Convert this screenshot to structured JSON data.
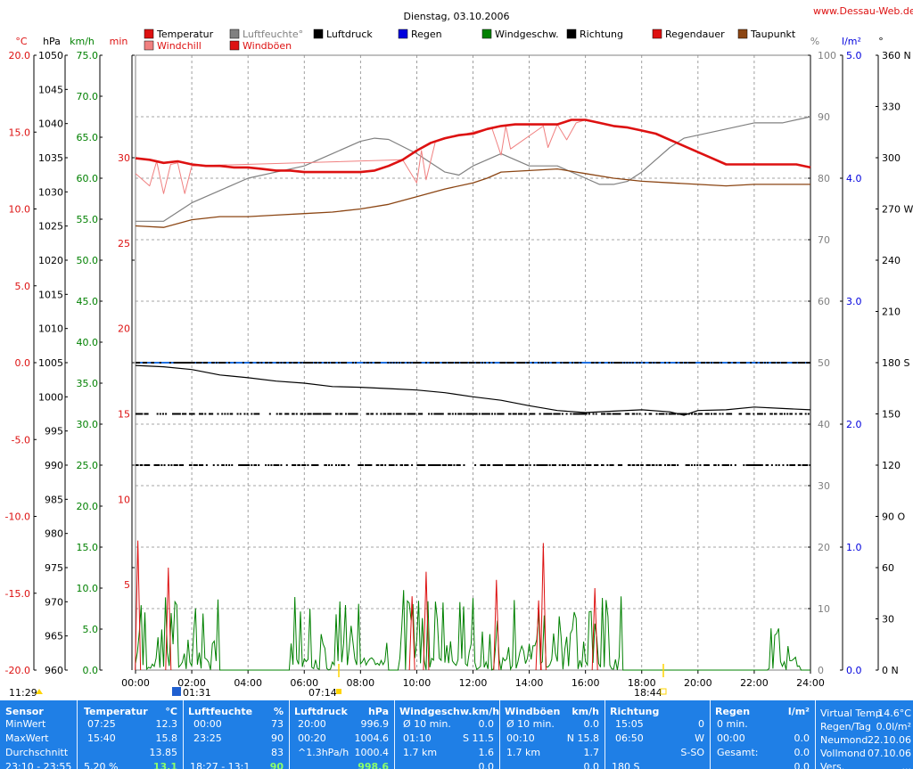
{
  "credit": "www.Dessau-Web.de",
  "chart_data": {
    "type": "line",
    "title": "Dienstag, 03.10.2006",
    "x_ticks": [
      "00:00",
      "02:00",
      "04:00",
      "06:00",
      "08:00",
      "10:00",
      "12:00",
      "14:00",
      "16:00",
      "18:00",
      "20:00",
      "22:00",
      "24:00"
    ],
    "legend": [
      {
        "label": "Temperatur",
        "color": "#dd1111"
      },
      {
        "label": "Luftfeuchte°",
        "color": "#808080"
      },
      {
        "label": "Luftdruck",
        "color": "#000000"
      },
      {
        "label": "Regen",
        "color": "#0000dd"
      },
      {
        "label": "Windgeschw.",
        "color": "#008000"
      },
      {
        "label": "Richtung",
        "color": "#000000"
      },
      {
        "label": "Regendauer",
        "color": "#dd1111"
      },
      {
        "label": "Taupunkt",
        "color": "#8b4513"
      },
      {
        "label": "Windchill",
        "color": "#f08080"
      },
      {
        "label": "Windböen",
        "color": "#dd1111"
      }
    ],
    "axes": {
      "temp": {
        "unit": "°C",
        "ticks": [
          "20.0",
          "15.0",
          "10.0",
          "5.0",
          "0.0",
          "-5.0",
          "-10.0",
          "-15.0",
          "-20.0"
        ],
        "range": [
          -20,
          20
        ],
        "color": "#dd1111"
      },
      "pressure": {
        "unit": "hPa",
        "ticks": [
          "1050",
          "1045",
          "1040",
          "1035",
          "1030",
          "1025",
          "1020",
          "1015",
          "1010",
          "1005",
          "1000",
          "995",
          "990",
          "985",
          "980",
          "975",
          "970",
          "965",
          "960"
        ],
        "range": [
          960,
          1050
        ],
        "color": "#000000"
      },
      "wind": {
        "unit": "km/h",
        "ticks": [
          "75.0",
          "70.0",
          "65.0",
          "60.0",
          "55.0",
          "50.0",
          "45.0",
          "40.0",
          "35.0",
          "30.0",
          "25.0",
          "20.0",
          "15.0",
          "10.0",
          "5.0",
          "0.0"
        ],
        "range": [
          0,
          75
        ],
        "color": "#008000"
      },
      "minutes": {
        "unit": "min",
        "ticks": [
          "30",
          "25",
          "20",
          "15",
          "10",
          "5"
        ],
        "range": [
          0,
          30
        ],
        "color": "#dd1111"
      },
      "humidity": {
        "unit": "%",
        "ticks": [
          "100",
          "90",
          "80",
          "70",
          "60",
          "50",
          "40",
          "30",
          "20",
          "10",
          "0"
        ],
        "range": [
          0,
          100
        ],
        "color": "#808080"
      },
      "rain": {
        "unit": "l/m²",
        "ticks": [
          "5.0",
          "4.0",
          "3.0",
          "2.0",
          "1.0",
          "0.0"
        ],
        "range": [
          0,
          5
        ],
        "color": "#0000dd"
      },
      "direction": {
        "unit": "°",
        "ticks": [
          "360 N",
          "330",
          "300",
          "270 W",
          "240",
          "210",
          "180 S",
          "150",
          "120",
          "90 O",
          "60",
          "30",
          "0 N"
        ],
        "range": [
          0,
          360
        ],
        "color": "#000000"
      }
    },
    "series": [
      {
        "name": "Temperatur",
        "color": "#dd1111",
        "axis": "temp",
        "x": [
          "00:00",
          "00:30",
          "01:00",
          "01:30",
          "02:00",
          "02:30",
          "03:00",
          "03:30",
          "04:00",
          "04:30",
          "05:00",
          "05:30",
          "06:00",
          "06:30",
          "07:00",
          "07:30",
          "08:00",
          "08:30",
          "09:00",
          "09:30",
          "10:00",
          "10:30",
          "11:00",
          "11:30",
          "12:00",
          "12:30",
          "13:00",
          "13:30",
          "14:00",
          "14:30",
          "15:00",
          "15:30",
          "16:00",
          "16:30",
          "17:00",
          "17:30",
          "18:00",
          "18:30",
          "19:00",
          "19:30",
          "20:00",
          "20:30",
          "21:00",
          "21:30",
          "22:00",
          "22:30",
          "23:00",
          "23:30",
          "24:00"
        ],
        "y": [
          13.3,
          13.2,
          13.0,
          13.1,
          12.9,
          12.8,
          12.8,
          12.7,
          12.7,
          12.6,
          12.5,
          12.5,
          12.4,
          12.4,
          12.4,
          12.4,
          12.4,
          12.5,
          12.8,
          13.2,
          13.8,
          14.3,
          14.6,
          14.8,
          14.9,
          15.2,
          15.4,
          15.5,
          15.5,
          15.5,
          15.5,
          15.8,
          15.8,
          15.6,
          15.4,
          15.3,
          15.1,
          14.9,
          14.5,
          14.1,
          13.7,
          13.3,
          12.9,
          12.9,
          12.9,
          12.9,
          12.9,
          12.9,
          12.7
        ]
      },
      {
        "name": "Windchill",
        "color": "#f08080",
        "axis": "temp",
        "x": [
          "00:00",
          "00:30",
          "00:45",
          "01:00",
          "01:15",
          "01:30",
          "01:45",
          "02:00",
          "09:30",
          "10:00",
          "10:10",
          "10:20",
          "10:40",
          "12:40",
          "13:00",
          "13:10",
          "13:20",
          "14:30",
          "14:40",
          "15:00",
          "15:20",
          "15:40",
          "16:00"
        ],
        "y": [
          12.3,
          11.5,
          13.1,
          11.0,
          12.9,
          13.0,
          11.0,
          12.8,
          13.2,
          11.7,
          13.8,
          11.9,
          14.4,
          15.3,
          13.5,
          15.4,
          13.9,
          15.4,
          14.0,
          15.5,
          14.5,
          15.6,
          15.8
        ]
      },
      {
        "name": "Luftfeuchte°",
        "color": "#808080",
        "axis": "humidity",
        "x": [
          "00:00",
          "01:00",
          "02:00",
          "03:00",
          "04:00",
          "05:00",
          "06:00",
          "07:00",
          "08:00",
          "08:30",
          "09:00",
          "10:00",
          "11:00",
          "11:30",
          "12:00",
          "12:30",
          "13:00",
          "14:00",
          "15:00",
          "16:00",
          "16:30",
          "17:00",
          "17:30",
          "18:00",
          "18:30",
          "19:00",
          "19:30",
          "20:00",
          "21:00",
          "22:00",
          "23:00",
          "24:00"
        ],
        "y": [
          73,
          73,
          76,
          78,
          80,
          81,
          82,
          84,
          86,
          86.5,
          86.3,
          84,
          81,
          80.5,
          82,
          83,
          84,
          82,
          82,
          80,
          79,
          79,
          79.5,
          81,
          83,
          85,
          86.5,
          87,
          88,
          89,
          89,
          90
        ]
      },
      {
        "name": "Taupunkt",
        "color": "#8b4513",
        "axis": "temp",
        "x": [
          "00:00",
          "01:00",
          "02:00",
          "03:00",
          "04:00",
          "05:00",
          "06:00",
          "07:00",
          "08:00",
          "09:00",
          "10:00",
          "11:00",
          "12:00",
          "12:30",
          "13:00",
          "14:00",
          "15:00",
          "16:00",
          "17:00",
          "18:00",
          "19:00",
          "20:00",
          "21:00",
          "22:00",
          "23:00",
          "24:00"
        ],
        "y": [
          8.9,
          8.8,
          9.3,
          9.5,
          9.5,
          9.6,
          9.7,
          9.8,
          10.0,
          10.3,
          10.8,
          11.3,
          11.7,
          12.0,
          12.4,
          12.5,
          12.6,
          12.3,
          12.0,
          11.8,
          11.7,
          11.6,
          11.5,
          11.6,
          11.6,
          11.6
        ]
      },
      {
        "name": "Luftdruck",
        "color": "#000000",
        "axis": "pressure",
        "x": [
          "00:00",
          "01:00",
          "02:00",
          "03:00",
          "04:00",
          "05:00",
          "06:00",
          "07:00",
          "08:00",
          "09:00",
          "10:00",
          "11:00",
          "12:00",
          "13:00",
          "14:00",
          "15:00",
          "16:00",
          "17:00",
          "18:00",
          "19:00",
          "19:30",
          "20:00",
          "21:00",
          "22:00",
          "23:00",
          "24:00"
        ],
        "y": [
          1004.6,
          1004.4,
          1004.0,
          1003.2,
          1002.8,
          1002.3,
          1002.0,
          1001.5,
          1001.4,
          1001.2,
          1001.0,
          1000.6,
          1000.0,
          999.5,
          998.7,
          998.0,
          997.7,
          997.9,
          998.1,
          997.8,
          997.3,
          998.0,
          998.1,
          998.5,
          998.3,
          998.1
        ]
      },
      {
        "name": "Regen",
        "color": "#1e6fe0",
        "axis": "rain",
        "x": [
          "00:00",
          "24:00"
        ],
        "y": [
          2.5,
          2.5
        ]
      }
    ],
    "wind_gusts": [
      {
        "x": "00:05",
        "y": 15.8
      },
      {
        "x": "01:10",
        "y": 12.5
      },
      {
        "x": "09:50",
        "y": 9.0
      },
      {
        "x": "10:20",
        "y": 12.0
      },
      {
        "x": "12:50",
        "y": 11.0
      },
      {
        "x": "14:20",
        "y": 8.5
      },
      {
        "x": "14:30",
        "y": 15.5
      },
      {
        "x": "16:20",
        "y": 10.0
      }
    ],
    "annotations": [
      {
        "time": "11:29",
        "label": "11:29"
      },
      {
        "time": "01:31",
        "label": "01:31"
      },
      {
        "time": "07:14",
        "label": "07:14"
      },
      {
        "time": "18:44",
        "label": "18:44"
      }
    ]
  },
  "table": {
    "headers": [
      "Sensor",
      "Temperatur",
      "°C",
      "Luftfeuchte",
      "%",
      "Luftdruck",
      "hPa",
      "Windgeschw.km/h",
      "Windböen",
      "km/h",
      "Richtung",
      "Regen",
      "l/m²"
    ],
    "rows": [
      [
        "MinWert",
        "07:25",
        "12.3",
        "00:00",
        "73",
        "20:00",
        "996.9",
        "Ø 10 min.",
        "0.0",
        "Ø 10 min.",
        "0.0",
        "15:05",
        "0",
        "0 min.",
        ""
      ],
      [
        "MaxWert",
        "15:40",
        "15.8",
        "23:25",
        "90",
        "00:20",
        "1004.6",
        "01:10",
        "S 11.5",
        "00:10",
        "N 15.8",
        "06:50",
        "W",
        "00:00",
        "0.0"
      ],
      [
        "Durchschnitt",
        "",
        "13.85",
        "",
        "83",
        "^1.3hPa/h",
        "1000.4",
        "1.7 km",
        "1.6",
        "1.7 km",
        "1.7",
        "",
        "S-SO",
        "Gesamt:",
        "0.0"
      ]
    ],
    "last_row": [
      "23:10 - 23:55",
      "",
      "5.20 %",
      "13.1",
      "18:27 - 13:1",
      "",
      "90",
      "",
      "",
      "998.6",
      "",
      "0.0",
      "",
      "0.0",
      "",
      "180 S",
      "",
      "0.0"
    ],
    "side": [
      [
        "Virtual Temp",
        "14.6°C"
      ],
      [
        "Regen/Tag",
        "0.0l/m²"
      ],
      [
        "Neumond",
        "22.10.06"
      ],
      [
        "Vollmond",
        "07.10.06"
      ],
      [
        "Vers.",
        "..."
      ]
    ]
  }
}
